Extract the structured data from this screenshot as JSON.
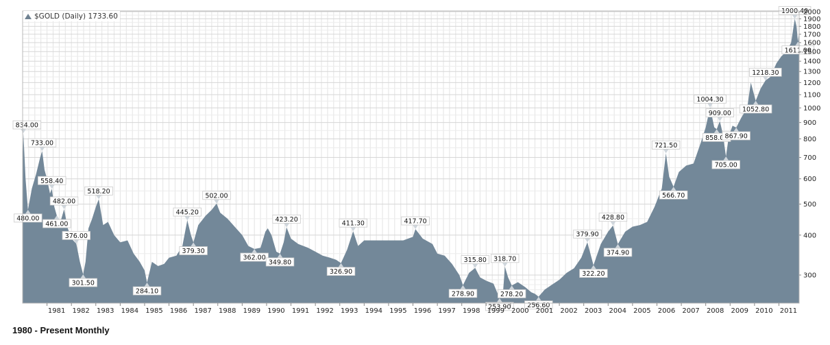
{
  "chart_data": {
    "type": "area",
    "title": "$GOLD (Daily) 1733.60",
    "caption": "1980 - Present Monthly",
    "y_scale": "log",
    "ylim": [
      245,
      2010
    ],
    "xlim": [
      1980.0,
      2011.83
    ],
    "grid": true,
    "fill_color": "#738899",
    "y_ticks": [
      300,
      400,
      500,
      600,
      700,
      800,
      900,
      1000,
      1100,
      1200,
      1300,
      1400,
      1500,
      1600,
      1700,
      1800,
      1900,
      2000
    ],
    "x_ticks": [
      {
        "label": "1981",
        "x": 1981.0
      },
      {
        "label": "1982",
        "x": 1982.0
      },
      {
        "label": "1983",
        "x": 1983.0
      },
      {
        "label": "1984",
        "x": 1984.0
      },
      {
        "label": "1985",
        "x": 1985.0
      },
      {
        "label": "1986",
        "x": 1986.0
      },
      {
        "label": "1987",
        "x": 1987.0
      },
      {
        "label": "1988",
        "x": 1988.0
      },
      {
        "label": "1989",
        "x": 1989.0
      },
      {
        "label": "1990",
        "x": 1990.0
      },
      {
        "label": "1991",
        "x": 1991.0
      },
      {
        "label": "1992",
        "x": 1992.0
      },
      {
        "label": "1993",
        "x": 1993.0
      },
      {
        "label": "1994",
        "x": 1994.0
      },
      {
        "label": "1995",
        "x": 1995.0
      },
      {
        "label": "1996",
        "x": 1996.0
      },
      {
        "label": "1997",
        "x": 1997.0
      },
      {
        "label": "1998",
        "x": 1998.0
      },
      {
        "label": "1999",
        "x": 1999.0
      },
      {
        "label": "2000",
        "x": 2000.0
      },
      {
        "label": "2001",
        "x": 2001.0
      },
      {
        "label": "2002",
        "x": 2002.0
      },
      {
        "label": "2003",
        "x": 2003.0
      },
      {
        "label": "2004",
        "x": 2004.0
      },
      {
        "label": "2005",
        "x": 2005.0
      },
      {
        "label": "2006",
        "x": 2006.0
      },
      {
        "label": "2007",
        "x": 2007.0
      },
      {
        "label": "2008",
        "x": 2008.0
      },
      {
        "label": "2009",
        "x": 2009.0
      },
      {
        "label": "2010",
        "x": 2010.0
      },
      {
        "label": "2011",
        "x": 2011.0
      }
    ],
    "series": [
      {
        "points": [
          [
            1980.0,
            650
          ],
          [
            1980.03,
            834
          ],
          [
            1980.12,
            600
          ],
          [
            1980.22,
            480
          ],
          [
            1980.38,
            560
          ],
          [
            1980.55,
            620
          ],
          [
            1980.72,
            700
          ],
          [
            1980.8,
            733
          ],
          [
            1980.9,
            640
          ],
          [
            1981.0,
            600
          ],
          [
            1981.12,
            540
          ],
          [
            1981.2,
            558.4
          ],
          [
            1981.3,
            490
          ],
          [
            1981.4,
            461
          ],
          [
            1981.55,
            440
          ],
          [
            1981.7,
            482
          ],
          [
            1981.85,
            420
          ],
          [
            1982.0,
            390
          ],
          [
            1982.2,
            376
          ],
          [
            1982.35,
            330
          ],
          [
            1982.48,
            301.5
          ],
          [
            1982.58,
            330
          ],
          [
            1982.7,
            420
          ],
          [
            1982.85,
            450
          ],
          [
            1983.0,
            490
          ],
          [
            1983.12,
            518.2
          ],
          [
            1983.3,
            430
          ],
          [
            1983.5,
            440
          ],
          [
            1983.75,
            400
          ],
          [
            1984.0,
            380
          ],
          [
            1984.3,
            385
          ],
          [
            1984.55,
            350
          ],
          [
            1984.8,
            330
          ],
          [
            1985.0,
            310
          ],
          [
            1985.1,
            284.1
          ],
          [
            1985.3,
            330
          ],
          [
            1985.55,
            320
          ],
          [
            1985.8,
            325
          ],
          [
            1986.0,
            340
          ],
          [
            1986.3,
            345
          ],
          [
            1986.55,
            370
          ],
          [
            1986.75,
            445.2
          ],
          [
            1986.9,
            400
          ],
          [
            1987.0,
            379.3
          ],
          [
            1987.2,
            430
          ],
          [
            1987.5,
            460
          ],
          [
            1987.75,
            480
          ],
          [
            1987.95,
            502
          ],
          [
            1988.1,
            470
          ],
          [
            1988.4,
            450
          ],
          [
            1988.75,
            420
          ],
          [
            1989.0,
            400
          ],
          [
            1989.25,
            370
          ],
          [
            1989.5,
            362
          ],
          [
            1989.75,
            365
          ],
          [
            1989.95,
            410
          ],
          [
            1990.05,
            420
          ],
          [
            1990.2,
            400
          ],
          [
            1990.4,
            355
          ],
          [
            1990.55,
            349.8
          ],
          [
            1990.7,
            380
          ],
          [
            1990.82,
            423.2
          ],
          [
            1991.0,
            390
          ],
          [
            1991.3,
            375
          ],
          [
            1991.7,
            365
          ],
          [
            1992.0,
            355
          ],
          [
            1992.3,
            345
          ],
          [
            1992.6,
            340
          ],
          [
            1992.85,
            335
          ],
          [
            1993.05,
            326.9
          ],
          [
            1993.3,
            360
          ],
          [
            1993.55,
            411.3
          ],
          [
            1993.75,
            370
          ],
          [
            1994.0,
            385
          ],
          [
            1994.4,
            385
          ],
          [
            1994.8,
            385
          ],
          [
            1995.2,
            385
          ],
          [
            1995.6,
            385
          ],
          [
            1996.0,
            395
          ],
          [
            1996.1,
            417.7
          ],
          [
            1996.4,
            390
          ],
          [
            1996.8,
            375
          ],
          [
            1997.0,
            350
          ],
          [
            1997.3,
            345
          ],
          [
            1997.6,
            325
          ],
          [
            1997.9,
            300
          ],
          [
            1998.05,
            278.9
          ],
          [
            1998.3,
            305
          ],
          [
            1998.55,
            315.8
          ],
          [
            1998.75,
            295
          ],
          [
            1999.0,
            288
          ],
          [
            1999.3,
            282
          ],
          [
            1999.55,
            253.9
          ],
          [
            1999.7,
            270
          ],
          [
            1999.77,
            318.7
          ],
          [
            1999.9,
            295
          ],
          [
            2000.05,
            278.2
          ],
          [
            2000.3,
            285
          ],
          [
            2000.6,
            275
          ],
          [
            2000.85,
            265
          ],
          [
            2001.0,
            262
          ],
          [
            2001.15,
            256.6
          ],
          [
            2001.4,
            270
          ],
          [
            2001.7,
            280
          ],
          [
            2002.0,
            290
          ],
          [
            2002.3,
            305
          ],
          [
            2002.6,
            315
          ],
          [
            2002.9,
            340
          ],
          [
            2003.15,
            379.9
          ],
          [
            2003.4,
            322.2
          ],
          [
            2003.7,
            375
          ],
          [
            2004.0,
            410
          ],
          [
            2004.2,
            428.8
          ],
          [
            2004.4,
            374.9
          ],
          [
            2004.7,
            410
          ],
          [
            2005.0,
            425
          ],
          [
            2005.3,
            430
          ],
          [
            2005.6,
            440
          ],
          [
            2005.9,
            490
          ],
          [
            2006.2,
            560
          ],
          [
            2006.37,
            721.5
          ],
          [
            2006.5,
            610
          ],
          [
            2006.68,
            566.7
          ],
          [
            2006.9,
            630
          ],
          [
            2007.2,
            660
          ],
          [
            2007.5,
            670
          ],
          [
            2007.8,
            780
          ],
          [
            2008.0,
            870
          ],
          [
            2008.18,
            1004.3
          ],
          [
            2008.35,
            870
          ],
          [
            2008.45,
            858
          ],
          [
            2008.58,
            909
          ],
          [
            2008.7,
            830
          ],
          [
            2008.83,
            705
          ],
          [
            2008.95,
            820
          ],
          [
            2009.1,
            880
          ],
          [
            2009.25,
            867.9
          ],
          [
            2009.45,
            930
          ],
          [
            2009.7,
            1000
          ],
          [
            2009.85,
            1200
          ],
          [
            2010.05,
            1052.8
          ],
          [
            2010.25,
            1150
          ],
          [
            2010.45,
            1218.3
          ],
          [
            2010.65,
            1250
          ],
          [
            2010.9,
            1380
          ],
          [
            2011.1,
            1450
          ],
          [
            2011.3,
            1500
          ],
          [
            2011.5,
            1600
          ],
          [
            2011.65,
            1900.4
          ],
          [
            2011.72,
            1800
          ],
          [
            2011.78,
            1611
          ],
          [
            2011.83,
            1733.6
          ]
        ]
      }
    ],
    "annotations": [
      {
        "text": "834.00",
        "x": 1980.03,
        "value": 834,
        "pos": "above"
      },
      {
        "text": "480.00",
        "x": 1980.22,
        "value": 480,
        "pos": "below"
      },
      {
        "text": "733.00",
        "x": 1980.8,
        "value": 733,
        "pos": "above"
      },
      {
        "text": "558.40",
        "x": 1981.2,
        "value": 558.4,
        "pos": "above"
      },
      {
        "text": "461.00",
        "x": 1981.4,
        "value": 461,
        "pos": "below"
      },
      {
        "text": "482.00",
        "x": 1981.7,
        "value": 482,
        "pos": "above"
      },
      {
        "text": "376.00",
        "x": 1982.2,
        "value": 376,
        "pos": "above"
      },
      {
        "text": "301.50",
        "x": 1982.48,
        "value": 301.5,
        "pos": "below"
      },
      {
        "text": "518.20",
        "x": 1983.12,
        "value": 518.2,
        "pos": "above"
      },
      {
        "text": "284.10",
        "x": 1985.1,
        "value": 284.1,
        "pos": "below"
      },
      {
        "text": "445.20",
        "x": 1986.75,
        "value": 445.2,
        "pos": "above"
      },
      {
        "text": "379.30",
        "x": 1987.0,
        "value": 379.3,
        "pos": "below"
      },
      {
        "text": "502.00",
        "x": 1987.95,
        "value": 502,
        "pos": "above"
      },
      {
        "text": "362.00",
        "x": 1989.5,
        "value": 362,
        "pos": "below"
      },
      {
        "text": "423.20",
        "x": 1990.82,
        "value": 423.2,
        "pos": "above"
      },
      {
        "text": "349.80",
        "x": 1990.55,
        "value": 349.8,
        "pos": "below"
      },
      {
        "text": "326.90",
        "x": 1993.05,
        "value": 326.9,
        "pos": "below"
      },
      {
        "text": "411.30",
        "x": 1993.55,
        "value": 411.3,
        "pos": "above"
      },
      {
        "text": "417.70",
        "x": 1996.1,
        "value": 417.7,
        "pos": "above"
      },
      {
        "text": "278.90",
        "x": 1998.05,
        "value": 278.9,
        "pos": "below"
      },
      {
        "text": "315.80",
        "x": 1998.55,
        "value": 315.8,
        "pos": "above"
      },
      {
        "text": "253.90",
        "x": 1999.55,
        "value": 253.9,
        "pos": "below"
      },
      {
        "text": "318.70",
        "x": 1999.77,
        "value": 318.7,
        "pos": "above"
      },
      {
        "text": "278.20",
        "x": 2000.05,
        "value": 278.2,
        "pos": "below"
      },
      {
        "text": "256.60",
        "x": 2001.15,
        "value": 256.6,
        "pos": "below"
      },
      {
        "text": "379.90",
        "x": 2003.15,
        "value": 379.9,
        "pos": "above"
      },
      {
        "text": "322.20",
        "x": 2003.4,
        "value": 322.2,
        "pos": "below"
      },
      {
        "text": "428.80",
        "x": 2004.2,
        "value": 428.8,
        "pos": "above"
      },
      {
        "text": "374.90",
        "x": 2004.4,
        "value": 374.9,
        "pos": "below"
      },
      {
        "text": "721.50",
        "x": 2006.37,
        "value": 721.5,
        "pos": "above"
      },
      {
        "text": "566.70",
        "x": 2006.68,
        "value": 566.7,
        "pos": "below"
      },
      {
        "text": "1004.30",
        "x": 2008.18,
        "value": 1004.3,
        "pos": "above"
      },
      {
        "text": "858.00",
        "x": 2008.45,
        "value": 858,
        "pos": "below"
      },
      {
        "text": "909.00",
        "x": 2008.58,
        "value": 909,
        "pos": "above"
      },
      {
        "text": "705.00",
        "x": 2008.83,
        "value": 705,
        "pos": "below"
      },
      {
        "text": "867.90",
        "x": 2009.25,
        "value": 867.9,
        "pos": "below"
      },
      {
        "text": "1052.80",
        "x": 2010.05,
        "value": 1052.8,
        "pos": "below"
      },
      {
        "text": "1218.30",
        "x": 2010.45,
        "value": 1218.3,
        "pos": "above"
      },
      {
        "text": "1900.40",
        "x": 2011.65,
        "value": 1900.4,
        "pos": "above"
      },
      {
        "text": "1611.00",
        "x": 2011.78,
        "value": 1611,
        "pos": "below"
      }
    ]
  }
}
